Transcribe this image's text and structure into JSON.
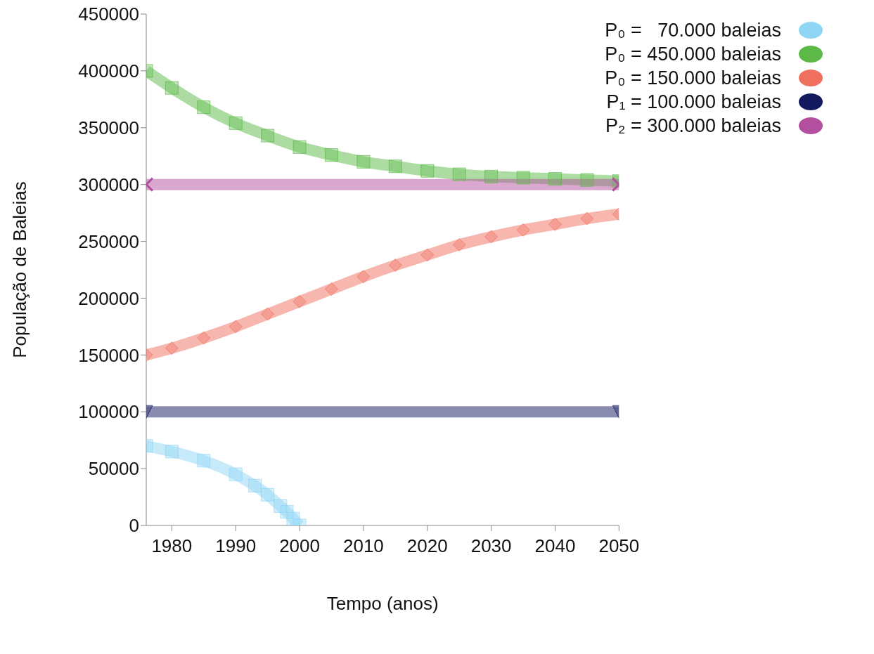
{
  "chart_data": {
    "type": "line",
    "xlabel": "Tempo (anos)",
    "ylabel": "População de Baleias",
    "xlim": [
      1976,
      2050
    ],
    "xticks": [
      1980,
      1990,
      2000,
      2010,
      2020,
      2030,
      2040,
      2050
    ],
    "ylim": [
      0,
      450000
    ],
    "yticks": [
      0,
      50000,
      100000,
      150000,
      200000,
      250000,
      300000,
      350000,
      400000,
      450000
    ],
    "legend": "top right",
    "series": [
      {
        "name": "P₀ =   70.000 baleias",
        "color": "#8fd6f5",
        "marker": "square",
        "x": [
          1976,
          1980,
          1985,
          1990,
          1993,
          1995,
          1997,
          1998,
          1999,
          2000
        ],
        "values": [
          70000,
          65000,
          57000,
          45000,
          35000,
          27000,
          17000,
          12000,
          6000,
          0
        ]
      },
      {
        "name": "P₀ = 450.000 baleias",
        "color": "#5cb947",
        "marker": "square",
        "x": [
          1976,
          1980,
          1985,
          1990,
          1995,
          2000,
          2005,
          2010,
          2015,
          2020,
          2025,
          2030,
          2035,
          2040,
          2045,
          2050
        ],
        "values": [
          400000,
          385000,
          368000,
          354000,
          343000,
          333000,
          326000,
          320000,
          316000,
          312000,
          309000,
          307000,
          306000,
          305000,
          304000,
          303000
        ]
      },
      {
        "name": "P₀ = 150.000 baleias",
        "color": "#f07060",
        "marker": "diamond",
        "x": [
          1976,
          1980,
          1985,
          1990,
          1995,
          2000,
          2005,
          2010,
          2015,
          2020,
          2025,
          2030,
          2035,
          2040,
          2045,
          2050
        ],
        "values": [
          150000,
          156000,
          165000,
          175000,
          186000,
          197000,
          208000,
          219000,
          229000,
          238000,
          247000,
          254000,
          260000,
          265000,
          270000,
          274000
        ]
      },
      {
        "name": "P₁ = 100.000 baleias",
        "color": "#13195e",
        "marker": "triangle",
        "x": [
          1976,
          2050
        ],
        "values": [
          100000,
          100000
        ]
      },
      {
        "name": "P₂ = 300.000 baleias",
        "color": "#b34f9f",
        "marker": "cross",
        "x": [
          1976,
          2050
        ],
        "values": [
          300000,
          300000
        ]
      }
    ]
  }
}
